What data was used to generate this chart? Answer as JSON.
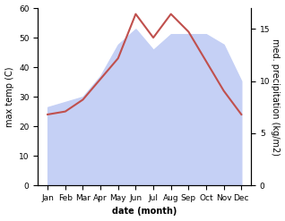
{
  "months": [
    "Jan",
    "Feb",
    "Mar",
    "Apr",
    "May",
    "Jun",
    "Jul",
    "Aug",
    "Sep",
    "Oct",
    "Nov",
    "Dec"
  ],
  "temp": [
    24,
    25,
    29,
    36,
    43,
    58,
    50,
    58,
    52,
    42,
    32,
    24
  ],
  "precip": [
    7.5,
    8.0,
    8.5,
    10.5,
    13.5,
    15.0,
    13.0,
    14.5,
    14.5,
    14.5,
    13.5,
    10.0
  ],
  "temp_color": "#c0504d",
  "precip_fill_color": "#c5d0f5",
  "ylabel_left": "max temp (C)",
  "ylabel_right": "med. precipitation (kg/m2)",
  "xlabel": "date (month)",
  "ylim_left": [
    0,
    60
  ],
  "ylim_right": [
    0,
    17
  ],
  "yticks_left": [
    0,
    10,
    20,
    30,
    40,
    50,
    60
  ],
  "yticks_right": [
    0,
    5,
    10,
    15
  ],
  "bg_color": "#ffffff"
}
